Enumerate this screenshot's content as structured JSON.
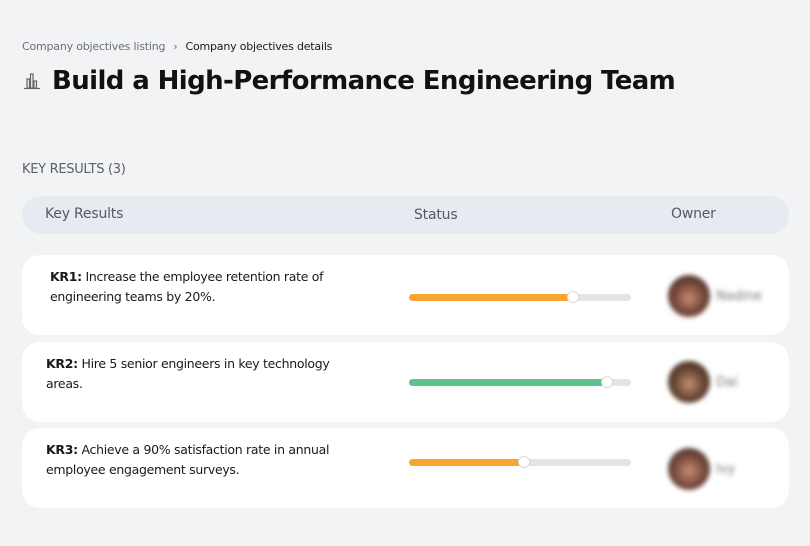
{
  "breadcrumb": {
    "parent": "Company objectives listing",
    "separator": "›",
    "current": "Company objectives details"
  },
  "header": {
    "icon": "bar-chart-icon",
    "title": "Build a High-Performance Engineering Team"
  },
  "section": {
    "label": "KEY RESULTS (3)"
  },
  "table": {
    "columns": [
      "Key Results",
      "Status",
      "Owner"
    ],
    "rows": [
      {
        "id": "KR1:",
        "text": " Increase the employee retention rate of engineering teams by 20%.",
        "progress": 74,
        "color": "#f8a531",
        "owner": "Nadine",
        "avatar_color": "#7a4a3c"
      },
      {
        "id": "KR2:",
        "text": " Hire 5 senior engineers in key technology areas.",
        "progress": 89,
        "color": "#5bc48c",
        "owner": "Dai",
        "avatar_color": "#6b4a36"
      },
      {
        "id": "KR3:",
        "text": " Achieve a 90% satisfaction rate in annual employee engagement surveys.",
        "progress": 52,
        "color": "#f8a531",
        "owner": "Ivy",
        "avatar_color": "#7d4f42"
      }
    ]
  },
  "colors": {
    "background": "#f2f3f5",
    "header_bg": "#e6eaf1",
    "track": "#e4e4e4",
    "in_progress": "#f8a531",
    "on_track": "#5bc48c"
  }
}
